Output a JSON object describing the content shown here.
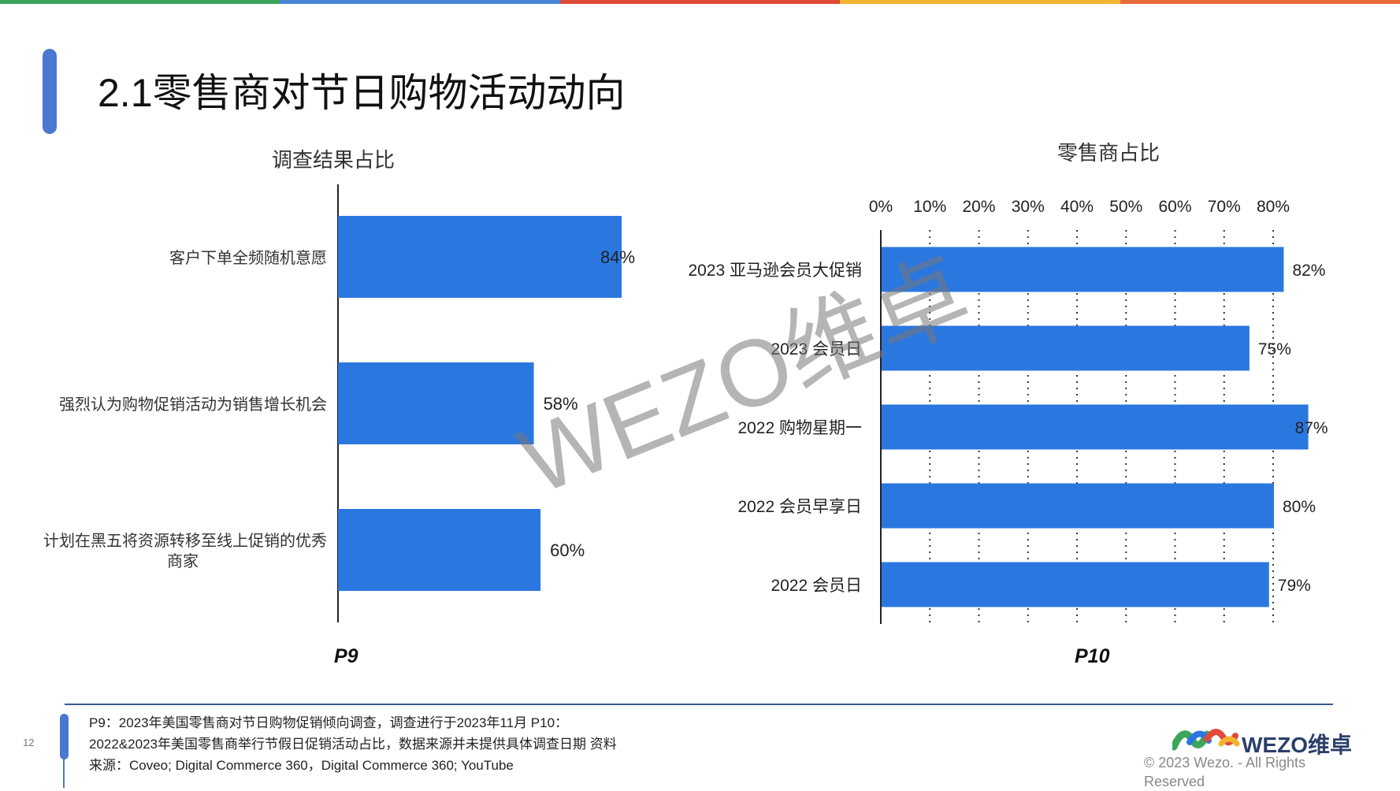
{
  "page": {
    "title": "2.1零售商对节日购物活动动向",
    "stripe_colors": [
      "#3ba55c",
      "#4a86d8",
      "#e04a3a",
      "#f2b42e",
      "#e86a3a"
    ]
  },
  "left_chart": {
    "title": "调查结果占比",
    "panel_label": "P9"
  },
  "right_chart": {
    "title": "零售商占比",
    "panel_label": "P10"
  },
  "chart_data": [
    {
      "type": "bar",
      "orientation": "horizontal",
      "title": "调查结果占比",
      "categories": [
        "客户下单全频随机意愿",
        "强烈认为购物促销活动为销售增长机会",
        "计划在黑五将资源转移至线上促销的优秀商家"
      ],
      "category_lines": [
        [
          "客户下单全频随机意愿"
        ],
        [
          "强烈认为购物促销活动为销售增长机会"
        ],
        [
          "计划在黑五将资源转移至线上促销的优秀",
          "商家"
        ]
      ],
      "values": [
        84,
        58,
        60
      ],
      "data_labels": [
        "84%",
        "58%",
        "60%"
      ],
      "xlim": [
        0,
        100
      ],
      "grid": false,
      "bar_color": "#2b77e0"
    },
    {
      "type": "bar",
      "orientation": "horizontal",
      "title": "零售商占比",
      "categories": [
        "2023 亚马逊会员大促销",
        "2023 会员日",
        "2022 购物星期一",
        "2022 会员早享日",
        "2022 会员日"
      ],
      "values": [
        82,
        75,
        87,
        80,
        79
      ],
      "data_labels": [
        "82%",
        "75%",
        "87%",
        "80%",
        "79%"
      ],
      "x_ticks": [
        "0%",
        "10%",
        "20%",
        "30%",
        "40%",
        "50%",
        "60%",
        "70%",
        "80%"
      ],
      "xlim": [
        0,
        80
      ],
      "axis_position": "top",
      "grid": "dotted-vertical",
      "bar_color": "#2b77e0"
    }
  ],
  "footer": {
    "page_number": "12",
    "note_line1": "P9：2023年美国零售商对节日购物促销倾向调查，调查进行于2023年11月 P10：",
    "note_line2": "2022&2023年美国零售商举行节假日促销活动占比，数据来源并未提供具体调查日期 资料",
    "note_line3": "来源：Coveo; Digital Commerce 360，Digital Commerce 360; YouTube",
    "logo_text": "WEZO维卓",
    "copyright": "© 2023 Wezo. - All Rights Reserved"
  },
  "watermark": "WEZO维卓"
}
